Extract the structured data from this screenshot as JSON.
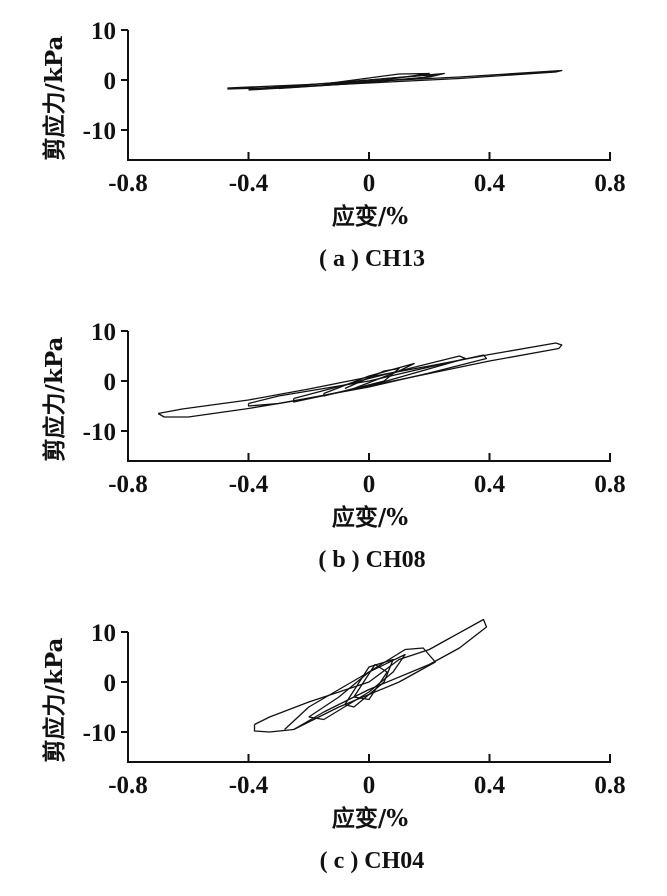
{
  "chart_data": [
    {
      "type": "line",
      "caption": "( a ) CH13",
      "xlabel": "应变/%",
      "ylabel": "剪应力/kPa",
      "xlim": [
        -0.8,
        0.8
      ],
      "ylim": [
        -16,
        10
      ],
      "xticks": [
        "-0.8",
        "-0.4",
        "0",
        "0.4",
        "0.8"
      ],
      "xtick_values": [
        -0.8,
        -0.4,
        0,
        0.4,
        0.8
      ],
      "yticks": [
        "10",
        "0",
        "-10"
      ],
      "ytick_values": [
        10,
        0,
        -10
      ],
      "grid": false,
      "series": [
        {
          "points": [
            [
              -0.47,
              -1.6
            ],
            [
              -0.2,
              -0.9
            ],
            [
              0,
              -0.3
            ],
            [
              0.3,
              0.6
            ],
            [
              0.64,
              1.9
            ],
            [
              0.62,
              1.6
            ],
            [
              0.3,
              0.3
            ],
            [
              0,
              -0.6
            ],
            [
              -0.3,
              -1.5
            ],
            [
              -0.47,
              -1.8
            ]
          ]
        },
        {
          "points": [
            [
              -0.3,
              -1.4
            ],
            [
              0,
              0
            ],
            [
              0.25,
              1.3
            ],
            [
              0.2,
              0.6
            ],
            [
              0,
              -0.5
            ],
            [
              -0.3,
              -1.7
            ]
          ]
        },
        {
          "points": [
            [
              -0.15,
              -0.8
            ],
            [
              0.1,
              1.2
            ],
            [
              0.2,
              1.3
            ],
            [
              0.05,
              0
            ],
            [
              -0.15,
              -1
            ]
          ]
        },
        {
          "points": [
            [
              -0.4,
              -1.8
            ],
            [
              -0.1,
              -0.5
            ],
            [
              0.22,
              1.1
            ],
            [
              0.18,
              0.5
            ],
            [
              -0.1,
              -0.9
            ],
            [
              -0.4,
              -2
            ]
          ]
        }
      ]
    },
    {
      "type": "line",
      "caption": "( b ) CH08",
      "xlabel": "应变/%",
      "ylabel": "剪应力/kPa",
      "xlim": [
        -0.8,
        0.8
      ],
      "ylim": [
        -16,
        10
      ],
      "xticks": [
        "-0.8",
        "-0.4",
        "0",
        "0.4",
        "0.8"
      ],
      "xtick_values": [
        -0.8,
        -0.4,
        0,
        0.4,
        0.8
      ],
      "yticks": [
        "10",
        "0",
        "-10"
      ],
      "ytick_values": [
        10,
        0,
        -10
      ],
      "grid": false,
      "series": [
        {
          "points": [
            [
              -0.7,
              -6.5
            ],
            [
              -0.62,
              -5.6
            ],
            [
              -0.4,
              -3.8
            ],
            [
              -0.2,
              -1.6
            ],
            [
              0,
              0.8
            ],
            [
              0.2,
              3
            ],
            [
              0.4,
              5.3
            ],
            [
              0.62,
              7.6
            ],
            [
              0.64,
              7.2
            ],
            [
              0.63,
              6.5
            ],
            [
              0.4,
              4
            ],
            [
              0.2,
              1.5
            ],
            [
              0,
              -1
            ],
            [
              -0.2,
              -3.5
            ],
            [
              -0.4,
              -5.5
            ],
            [
              -0.6,
              -7.2
            ],
            [
              -0.68,
              -7.2
            ],
            [
              -0.7,
              -6.5
            ]
          ]
        },
        {
          "points": [
            [
              -0.4,
              -4.5
            ],
            [
              -0.3,
              -3
            ],
            [
              0,
              0
            ],
            [
              0.2,
              2.8
            ],
            [
              0.38,
              5.2
            ],
            [
              0.39,
              4.5
            ],
            [
              0.2,
              1.6
            ],
            [
              0,
              -1.2
            ],
            [
              -0.3,
              -4.5
            ],
            [
              -0.4,
              -5
            ],
            [
              -0.4,
              -4.5
            ]
          ]
        },
        {
          "points": [
            [
              -0.25,
              -3.5
            ],
            [
              0,
              0.5
            ],
            [
              0.3,
              5
            ],
            [
              0.32,
              4.5
            ],
            [
              0,
              -1
            ],
            [
              -0.25,
              -4.2
            ],
            [
              -0.25,
              -3.5
            ]
          ]
        },
        {
          "points": [
            [
              -0.15,
              -2.5
            ],
            [
              0,
              1
            ],
            [
              0.15,
              3.5
            ],
            [
              0.1,
              2
            ],
            [
              -0.05,
              -1.5
            ],
            [
              -0.15,
              -3
            ],
            [
              -0.15,
              -2.5
            ]
          ]
        },
        {
          "points": [
            [
              -0.08,
              -1.5
            ],
            [
              0.05,
              2
            ],
            [
              0.1,
              2.5
            ],
            [
              0.05,
              0
            ],
            [
              -0.08,
              -2
            ]
          ]
        }
      ]
    },
    {
      "type": "line",
      "caption": "( c ) CH04",
      "xlabel": "应变/%",
      "ylabel": "剪应力/kPa",
      "xlim": [
        -0.8,
        0.8
      ],
      "ylim": [
        -16,
        10
      ],
      "xticks": [
        "-0.8",
        "-0.4",
        "0",
        "0.4",
        "0.8"
      ],
      "xtick_values": [
        -0.8,
        -0.4,
        0,
        0.4,
        0.8
      ],
      "yticks": [
        "10",
        "0",
        "-10"
      ],
      "ytick_values": [
        10,
        0,
        -10
      ],
      "grid": false,
      "series": [
        {
          "points": [
            [
              -0.38,
              -8.5
            ],
            [
              -0.33,
              -7
            ],
            [
              -0.2,
              -4
            ],
            [
              0,
              0
            ],
            [
              0.1,
              4.5
            ],
            [
              0.2,
              6.5
            ],
            [
              0.26,
              8.5
            ],
            [
              0.38,
              12.5
            ],
            [
              0.39,
              11
            ],
            [
              0.3,
              6.8
            ],
            [
              0.2,
              3.5
            ],
            [
              0,
              -1.5
            ],
            [
              -0.15,
              -6
            ],
            [
              -0.25,
              -9.5
            ],
            [
              -0.33,
              -10
            ],
            [
              -0.38,
              -9.8
            ],
            [
              -0.38,
              -8.5
            ]
          ]
        },
        {
          "points": [
            [
              -0.28,
              -9.5
            ],
            [
              -0.2,
              -5
            ],
            [
              0,
              2
            ],
            [
              0.12,
              6.5
            ],
            [
              0.18,
              6.8
            ],
            [
              0.22,
              4
            ],
            [
              0.1,
              0
            ],
            [
              -0.1,
              -5
            ],
            [
              -0.25,
              -9.5
            ]
          ]
        },
        {
          "points": [
            [
              -0.2,
              -7
            ],
            [
              -0.1,
              -3
            ],
            [
              0,
              2
            ],
            [
              0.12,
              5.5
            ],
            [
              0.08,
              2
            ],
            [
              0,
              -2
            ],
            [
              -0.15,
              -7.5
            ],
            [
              -0.2,
              -7
            ]
          ]
        },
        {
          "points": [
            [
              -0.08,
              -4.5
            ],
            [
              0,
              3
            ],
            [
              0.08,
              4.5
            ],
            [
              0.05,
              0
            ],
            [
              -0.05,
              -5
            ],
            [
              -0.08,
              -4.5
            ]
          ]
        },
        {
          "points": [
            [
              -0.05,
              -3
            ],
            [
              0.02,
              3.5
            ],
            [
              0.06,
              2
            ],
            [
              0,
              -3.5
            ],
            [
              -0.05,
              -3
            ]
          ]
        }
      ]
    }
  ]
}
